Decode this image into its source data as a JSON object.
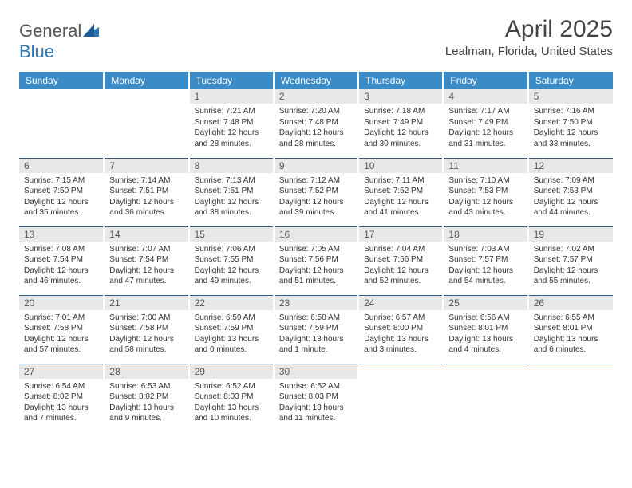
{
  "logo": {
    "textA": "General",
    "textB": "Blue"
  },
  "title": "April 2025",
  "location": "Lealman, Florida, United States",
  "colors": {
    "header_bg": "#3b8bc7",
    "header_text": "#ffffff",
    "daynum_bg": "#e8e8e8",
    "daynum_text": "#555555",
    "body_text": "#333333",
    "week_divider": "#2e5b8a",
    "logo_gray": "#555555",
    "logo_blue": "#2e75b6"
  },
  "weekdays": [
    "Sunday",
    "Monday",
    "Tuesday",
    "Wednesday",
    "Thursday",
    "Friday",
    "Saturday"
  ],
  "weeks": [
    [
      null,
      null,
      {
        "n": "1",
        "sunrise": "7:21 AM",
        "sunset": "7:48 PM",
        "daylight": "12 hours and 28 minutes."
      },
      {
        "n": "2",
        "sunrise": "7:20 AM",
        "sunset": "7:48 PM",
        "daylight": "12 hours and 28 minutes."
      },
      {
        "n": "3",
        "sunrise": "7:18 AM",
        "sunset": "7:49 PM",
        "daylight": "12 hours and 30 minutes."
      },
      {
        "n": "4",
        "sunrise": "7:17 AM",
        "sunset": "7:49 PM",
        "daylight": "12 hours and 31 minutes."
      },
      {
        "n": "5",
        "sunrise": "7:16 AM",
        "sunset": "7:50 PM",
        "daylight": "12 hours and 33 minutes."
      }
    ],
    [
      {
        "n": "6",
        "sunrise": "7:15 AM",
        "sunset": "7:50 PM",
        "daylight": "12 hours and 35 minutes."
      },
      {
        "n": "7",
        "sunrise": "7:14 AM",
        "sunset": "7:51 PM",
        "daylight": "12 hours and 36 minutes."
      },
      {
        "n": "8",
        "sunrise": "7:13 AM",
        "sunset": "7:51 PM",
        "daylight": "12 hours and 38 minutes."
      },
      {
        "n": "9",
        "sunrise": "7:12 AM",
        "sunset": "7:52 PM",
        "daylight": "12 hours and 39 minutes."
      },
      {
        "n": "10",
        "sunrise": "7:11 AM",
        "sunset": "7:52 PM",
        "daylight": "12 hours and 41 minutes."
      },
      {
        "n": "11",
        "sunrise": "7:10 AM",
        "sunset": "7:53 PM",
        "daylight": "12 hours and 43 minutes."
      },
      {
        "n": "12",
        "sunrise": "7:09 AM",
        "sunset": "7:53 PM",
        "daylight": "12 hours and 44 minutes."
      }
    ],
    [
      {
        "n": "13",
        "sunrise": "7:08 AM",
        "sunset": "7:54 PM",
        "daylight": "12 hours and 46 minutes."
      },
      {
        "n": "14",
        "sunrise": "7:07 AM",
        "sunset": "7:54 PM",
        "daylight": "12 hours and 47 minutes."
      },
      {
        "n": "15",
        "sunrise": "7:06 AM",
        "sunset": "7:55 PM",
        "daylight": "12 hours and 49 minutes."
      },
      {
        "n": "16",
        "sunrise": "7:05 AM",
        "sunset": "7:56 PM",
        "daylight": "12 hours and 51 minutes."
      },
      {
        "n": "17",
        "sunrise": "7:04 AM",
        "sunset": "7:56 PM",
        "daylight": "12 hours and 52 minutes."
      },
      {
        "n": "18",
        "sunrise": "7:03 AM",
        "sunset": "7:57 PM",
        "daylight": "12 hours and 54 minutes."
      },
      {
        "n": "19",
        "sunrise": "7:02 AM",
        "sunset": "7:57 PM",
        "daylight": "12 hours and 55 minutes."
      }
    ],
    [
      {
        "n": "20",
        "sunrise": "7:01 AM",
        "sunset": "7:58 PM",
        "daylight": "12 hours and 57 minutes."
      },
      {
        "n": "21",
        "sunrise": "7:00 AM",
        "sunset": "7:58 PM",
        "daylight": "12 hours and 58 minutes."
      },
      {
        "n": "22",
        "sunrise": "6:59 AM",
        "sunset": "7:59 PM",
        "daylight": "13 hours and 0 minutes."
      },
      {
        "n": "23",
        "sunrise": "6:58 AM",
        "sunset": "7:59 PM",
        "daylight": "13 hours and 1 minute."
      },
      {
        "n": "24",
        "sunrise": "6:57 AM",
        "sunset": "8:00 PM",
        "daylight": "13 hours and 3 minutes."
      },
      {
        "n": "25",
        "sunrise": "6:56 AM",
        "sunset": "8:01 PM",
        "daylight": "13 hours and 4 minutes."
      },
      {
        "n": "26",
        "sunrise": "6:55 AM",
        "sunset": "8:01 PM",
        "daylight": "13 hours and 6 minutes."
      }
    ],
    [
      {
        "n": "27",
        "sunrise": "6:54 AM",
        "sunset": "8:02 PM",
        "daylight": "13 hours and 7 minutes."
      },
      {
        "n": "28",
        "sunrise": "6:53 AM",
        "sunset": "8:02 PM",
        "daylight": "13 hours and 9 minutes."
      },
      {
        "n": "29",
        "sunrise": "6:52 AM",
        "sunset": "8:03 PM",
        "daylight": "13 hours and 10 minutes."
      },
      {
        "n": "30",
        "sunrise": "6:52 AM",
        "sunset": "8:03 PM",
        "daylight": "13 hours and 11 minutes."
      },
      null,
      null,
      null
    ]
  ],
  "labels": {
    "sunrise_prefix": "Sunrise: ",
    "sunset_prefix": "Sunset: ",
    "daylight_prefix": "Daylight: "
  }
}
